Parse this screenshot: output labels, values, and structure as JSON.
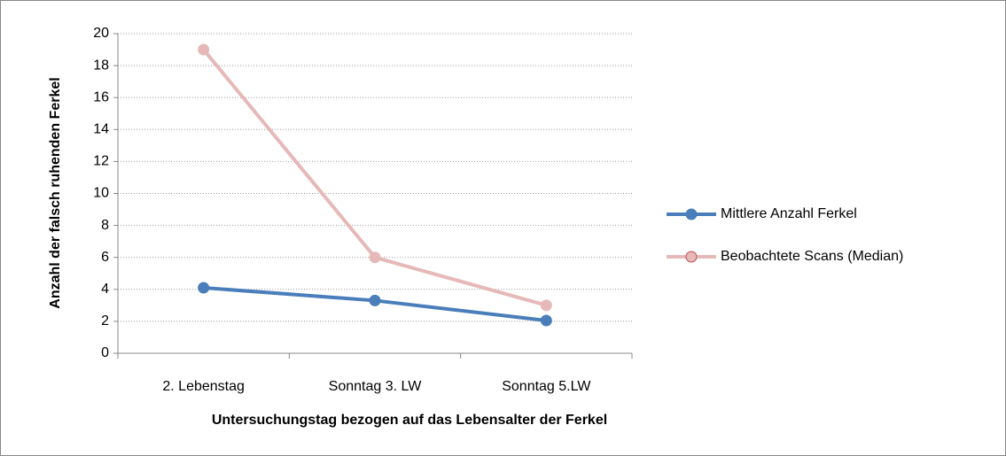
{
  "chart_data": {
    "type": "line",
    "y_label": "Anzahl der falsch ruhenden Ferkel",
    "x_label": "Untersuchungstag bezogen auf das Lebensalter der Ferkel",
    "categories": [
      "2. Lebenstag",
      "Sonntag 3. LW",
      "Sonntag 5.LW"
    ],
    "series": [
      {
        "name": "Mittlere Anzahl Ferkel",
        "color": "#4a7ebb",
        "values": [
          4.1,
          3.3,
          2.05
        ]
      },
      {
        "name": "Beobachtete Scans (Median)",
        "color": "#e6b9b8",
        "values": [
          19,
          6,
          3
        ]
      }
    ],
    "ylim": [
      0,
      20
    ],
    "yticks": [
      0,
      2,
      4,
      6,
      8,
      10,
      12,
      14,
      16,
      18,
      20
    ],
    "grid": true,
    "legend": "right"
  }
}
